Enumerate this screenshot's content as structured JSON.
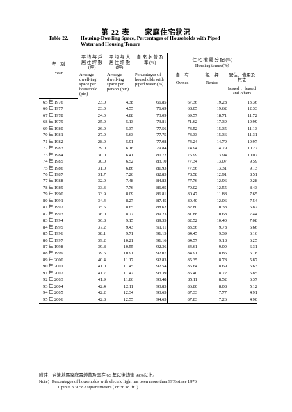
{
  "title": {
    "zh": "第 22 表　　家庭住宅狀況",
    "en_label": "Table 22.",
    "en_line1": "Housing-Dwelling Space, Percentages of Households with Piped",
    "en_line2": "Water and Housing Tenure"
  },
  "headers": {
    "year_zh": "年　別",
    "year_en": "Year",
    "col1_zh": "平 均 每 戶 居 住 坪 數 (坪)",
    "col1_en": "Average dwell-ing space per household (pin)",
    "col2_zh": "平 均 每 人 居 住 坪 數 (坪)",
    "col2_en": "Average dwell-ing space per person (pin)",
    "col3_zh": "自 來 水 普 及 率 (%)",
    "col3_en": "Percentages of households with piped water (%)",
    "tenure_zh": "住 宅 權 屬 分 配 (%)",
    "tenure_en": "Housing tenure(%)",
    "owned_zh": "自　有",
    "owned_en": "Owned",
    "rented_zh": "租　押",
    "rented_en": "Rented",
    "issued_zh": "配住、借用及其它",
    "issued_en": "Issued 、leased and others"
  },
  "rows": [
    {
      "year": "65 年 1976",
      "hh": "23.0",
      "pp": "4.38",
      "water": "66.85",
      "owned": "67.36",
      "rented": "19.28",
      "other": "13.36"
    },
    {
      "year": "66 年 1977",
      "hh": "23.0",
      "pp": "4.55",
      "water": "76.69",
      "owned": "68.05",
      "rented": "19.62",
      "other": "12.33"
    },
    {
      "year": "67 年 1978",
      "hh": "24.0",
      "pp": "4.88",
      "water": "73.09",
      "owned": "69.57",
      "rented": "18.71",
      "other": "11.72"
    },
    {
      "year": "68 年 1979",
      "hh": "25.0",
      "pp": "5.13",
      "water": "73.81",
      "owned": "71.62",
      "rented": "17.39",
      "other": "10.99"
    },
    {
      "year": "69 年 1980",
      "hh": "26.0",
      "pp": "5.37",
      "water": "77.56",
      "owned": "73.52",
      "rented": "15.35",
      "other": "11.13"
    },
    {
      "year": "70 年 1981",
      "hh": "27.0",
      "pp": "5.63",
      "water": "77.75",
      "owned": "73.33",
      "rented": "15.36",
      "other": "11.31"
    },
    {
      "year": "71 年 1982",
      "hh": "28.0",
      "pp": "5.91",
      "water": "77.08",
      "owned": "74.24",
      "rented": "14.79",
      "other": "10.97"
    },
    {
      "year": "72 年 1983",
      "hh": "29.0",
      "pp": "6.16",
      "water": "79.84",
      "owned": "74.94",
      "rented": "14.79",
      "other": "10.27"
    },
    {
      "year": "73 年 1984",
      "hh": "30.0",
      "pp": "6.41",
      "water": "80.72",
      "owned": "75.99",
      "rented": "13.94",
      "other": "10.07"
    },
    {
      "year": "74 年 1985",
      "hh": "30.0",
      "pp": "6.52",
      "water": "83.10",
      "owned": "77.34",
      "rented": "13.07",
      "other": "9.59"
    },
    {
      "year": "75 年 1986",
      "hh": "31.0",
      "pp": "6.86",
      "water": "81.93",
      "owned": "77.56",
      "rented": "13.31",
      "other": "9.13"
    },
    {
      "year": "76 年 1987",
      "hh": "31.7",
      "pp": "7.26",
      "water": "82.83",
      "owned": "78.58",
      "rented": "12.91",
      "other": "8.51"
    },
    {
      "year": "77 年 1988",
      "hh": "32.0",
      "pp": "7.48",
      "water": "84.83",
      "owned": "77.76",
      "rented": "12.96",
      "other": "9.28"
    },
    {
      "year": "78 年 1989",
      "hh": "33.3",
      "pp": "7.76",
      "water": "86.05",
      "owned": "79.02",
      "rented": "12.55",
      "other": "8.43"
    },
    {
      "year": "79 年 1990",
      "hh": "33.9",
      "pp": "8.09",
      "water": "86.81",
      "owned": "80.47",
      "rented": "11.88",
      "other": "7.65"
    },
    {
      "year": "80 年 1991",
      "hh": "34.4",
      "pp": "8.27",
      "water": "87.45",
      "owned": "80.40",
      "rented": "12.06",
      "other": "7.54"
    },
    {
      "year": "81 年 1992",
      "hh": "35.5",
      "pp": "8.65",
      "water": "88.62",
      "owned": "82.80",
      "rented": "10.38",
      "other": "6.82"
    },
    {
      "year": "82 年 1993",
      "hh": "36.0",
      "pp": "8.77",
      "water": "89.23",
      "owned": "81.88",
      "rented": "10.68",
      "other": "7.44"
    },
    {
      "year": "83 年 1994",
      "hh": "36.8",
      "pp": "9.15",
      "water": "89.35",
      "owned": "82.52",
      "rented": "10.40",
      "other": "7.08"
    },
    {
      "year": "84 年 1995",
      "hh": "37.2",
      "pp": "9.43",
      "water": "91.11",
      "owned": "83.56",
      "rented": "9.78",
      "other": "6.66"
    },
    {
      "year": "85 年 1996",
      "hh": "38.1",
      "pp": "9.71",
      "water": "91.15",
      "owned": "84.45",
      "rented": "9.39",
      "other": "6.16"
    },
    {
      "year": "86 年 1997",
      "hh": "39.2",
      "pp": "10.21",
      "water": "91.16",
      "owned": "84.57",
      "rented": "9.18",
      "other": "6.25"
    },
    {
      "year": "87 年 1998",
      "hh": "39.8",
      "pp": "10.55",
      "water": "92.36",
      "owned": "84.61",
      "rented": "9.09",
      "other": "6.31"
    },
    {
      "year": "88 年 1999",
      "hh": "39.6",
      "pp": "10.91",
      "water": "92.07",
      "owned": "84.91",
      "rented": "8.86",
      "other": "6.18"
    },
    {
      "year": "89 年 2000",
      "hh": "40.4",
      "pp": "11.17",
      "water": "92.83",
      "owned": "85.35",
      "rented": "8.78",
      "other": "5.87"
    },
    {
      "year": "90 年 2001",
      "hh": "41.0",
      "pp": "11.45",
      "water": "92.54",
      "owned": "85.64",
      "rented": "8.69",
      "other": "5.63"
    },
    {
      "year": "91 年 2002",
      "hh": "41.7",
      "pp": "11.42",
      "water": "93.39",
      "owned": "85.40",
      "rented": "8.72",
      "other": "5.85"
    },
    {
      "year": "92 年 2003",
      "hh": "41.9",
      "pp": "11.86",
      "water": "93.48",
      "owned": "85.11",
      "rented": "8.52",
      "other": "6.37"
    },
    {
      "year": "93 年 2004",
      "hh": "42.4",
      "pp": "12.11",
      "water": "93.83",
      "owned": "86.80",
      "rented": "8.08",
      "other": "5.12"
    },
    {
      "year": "94 年 2005",
      "hh": "42.2",
      "pp": "12.34",
      "water": "93.65",
      "owned": "87.33",
      "rented": "7.77",
      "other": "4.91"
    },
    {
      "year": "95 年 2006",
      "hh": "42.8",
      "pp": "12.55",
      "water": "94.63",
      "owned": "87.83",
      "rented": "7.26",
      "other": "4.90"
    }
  ],
  "notes": {
    "zh": "附註：台灣地區家庭電燈普及率在 65 年以後均達 99%以上。",
    "en1": "Note：Percentages of households with electric light has been more than 99% since 1976.",
    "en2": "1 pin = 3.30582 square meters ( or 36 sq. ft. )"
  }
}
